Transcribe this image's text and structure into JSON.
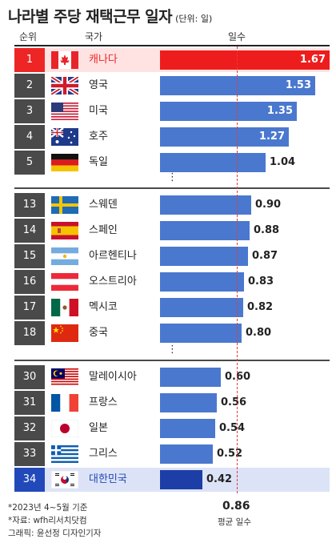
{
  "header": {
    "title": "나라별 주당 재택근무 일자",
    "unit": "(단위: 일)",
    "col_rank": "순위",
    "col_country": "국가",
    "col_days": "일수"
  },
  "separator_glyph": "⋮",
  "chart_data": {
    "type": "bar",
    "orientation": "horizontal",
    "categories": [
      "캐나다",
      "영국",
      "미국",
      "호주",
      "독일",
      "스웨덴",
      "스페인",
      "아르헨티나",
      "오스트리아",
      "멕시코",
      "중국",
      "말레이시아",
      "프랑스",
      "일본",
      "그리스",
      "대한민국"
    ],
    "ranks": [
      "1",
      "2",
      "3",
      "4",
      "5",
      "13",
      "14",
      "15",
      "16",
      "17",
      "18",
      "30",
      "31",
      "32",
      "33",
      "34"
    ],
    "values": [
      1.67,
      1.53,
      1.35,
      1.27,
      1.04,
      0.9,
      0.88,
      0.87,
      0.83,
      0.82,
      0.8,
      0.6,
      0.56,
      0.54,
      0.52,
      0.42
    ],
    "value_labels": [
      "1.67",
      "1.53",
      "1.35",
      "1.27",
      "1.04",
      "0.90",
      "0.88",
      "0.87",
      "0.83",
      "0.82",
      "0.80",
      "0.60",
      "0.56",
      "0.54",
      "0.52",
      "0.42"
    ],
    "flag_icons": [
      "canada-flag-icon",
      "uk-flag-icon",
      "usa-flag-icon",
      "australia-flag-icon",
      "germany-flag-icon",
      "sweden-flag-icon",
      "spain-flag-icon",
      "argentina-flag-icon",
      "austria-flag-icon",
      "mexico-flag-icon",
      "china-flag-icon",
      "malaysia-flag-icon",
      "france-flag-icon",
      "japan-flag-icon",
      "greece-flag-icon",
      "korea-flag-icon"
    ],
    "average": 0.86,
    "average_label": "0.86",
    "average_caption": "평균 일수",
    "xlim": [
      0,
      1.67
    ],
    "colors": {
      "first": "#ee1d1d",
      "default": "#4a78cf",
      "korea": "#1d3ea6",
      "average_line": "#e23b3b"
    }
  },
  "footnotes": {
    "period": "*2023년 4~5월 기준",
    "source": "*자료: wfh리서치닷컴",
    "credit": "그래픽: 윤선정 디자인기자"
  }
}
